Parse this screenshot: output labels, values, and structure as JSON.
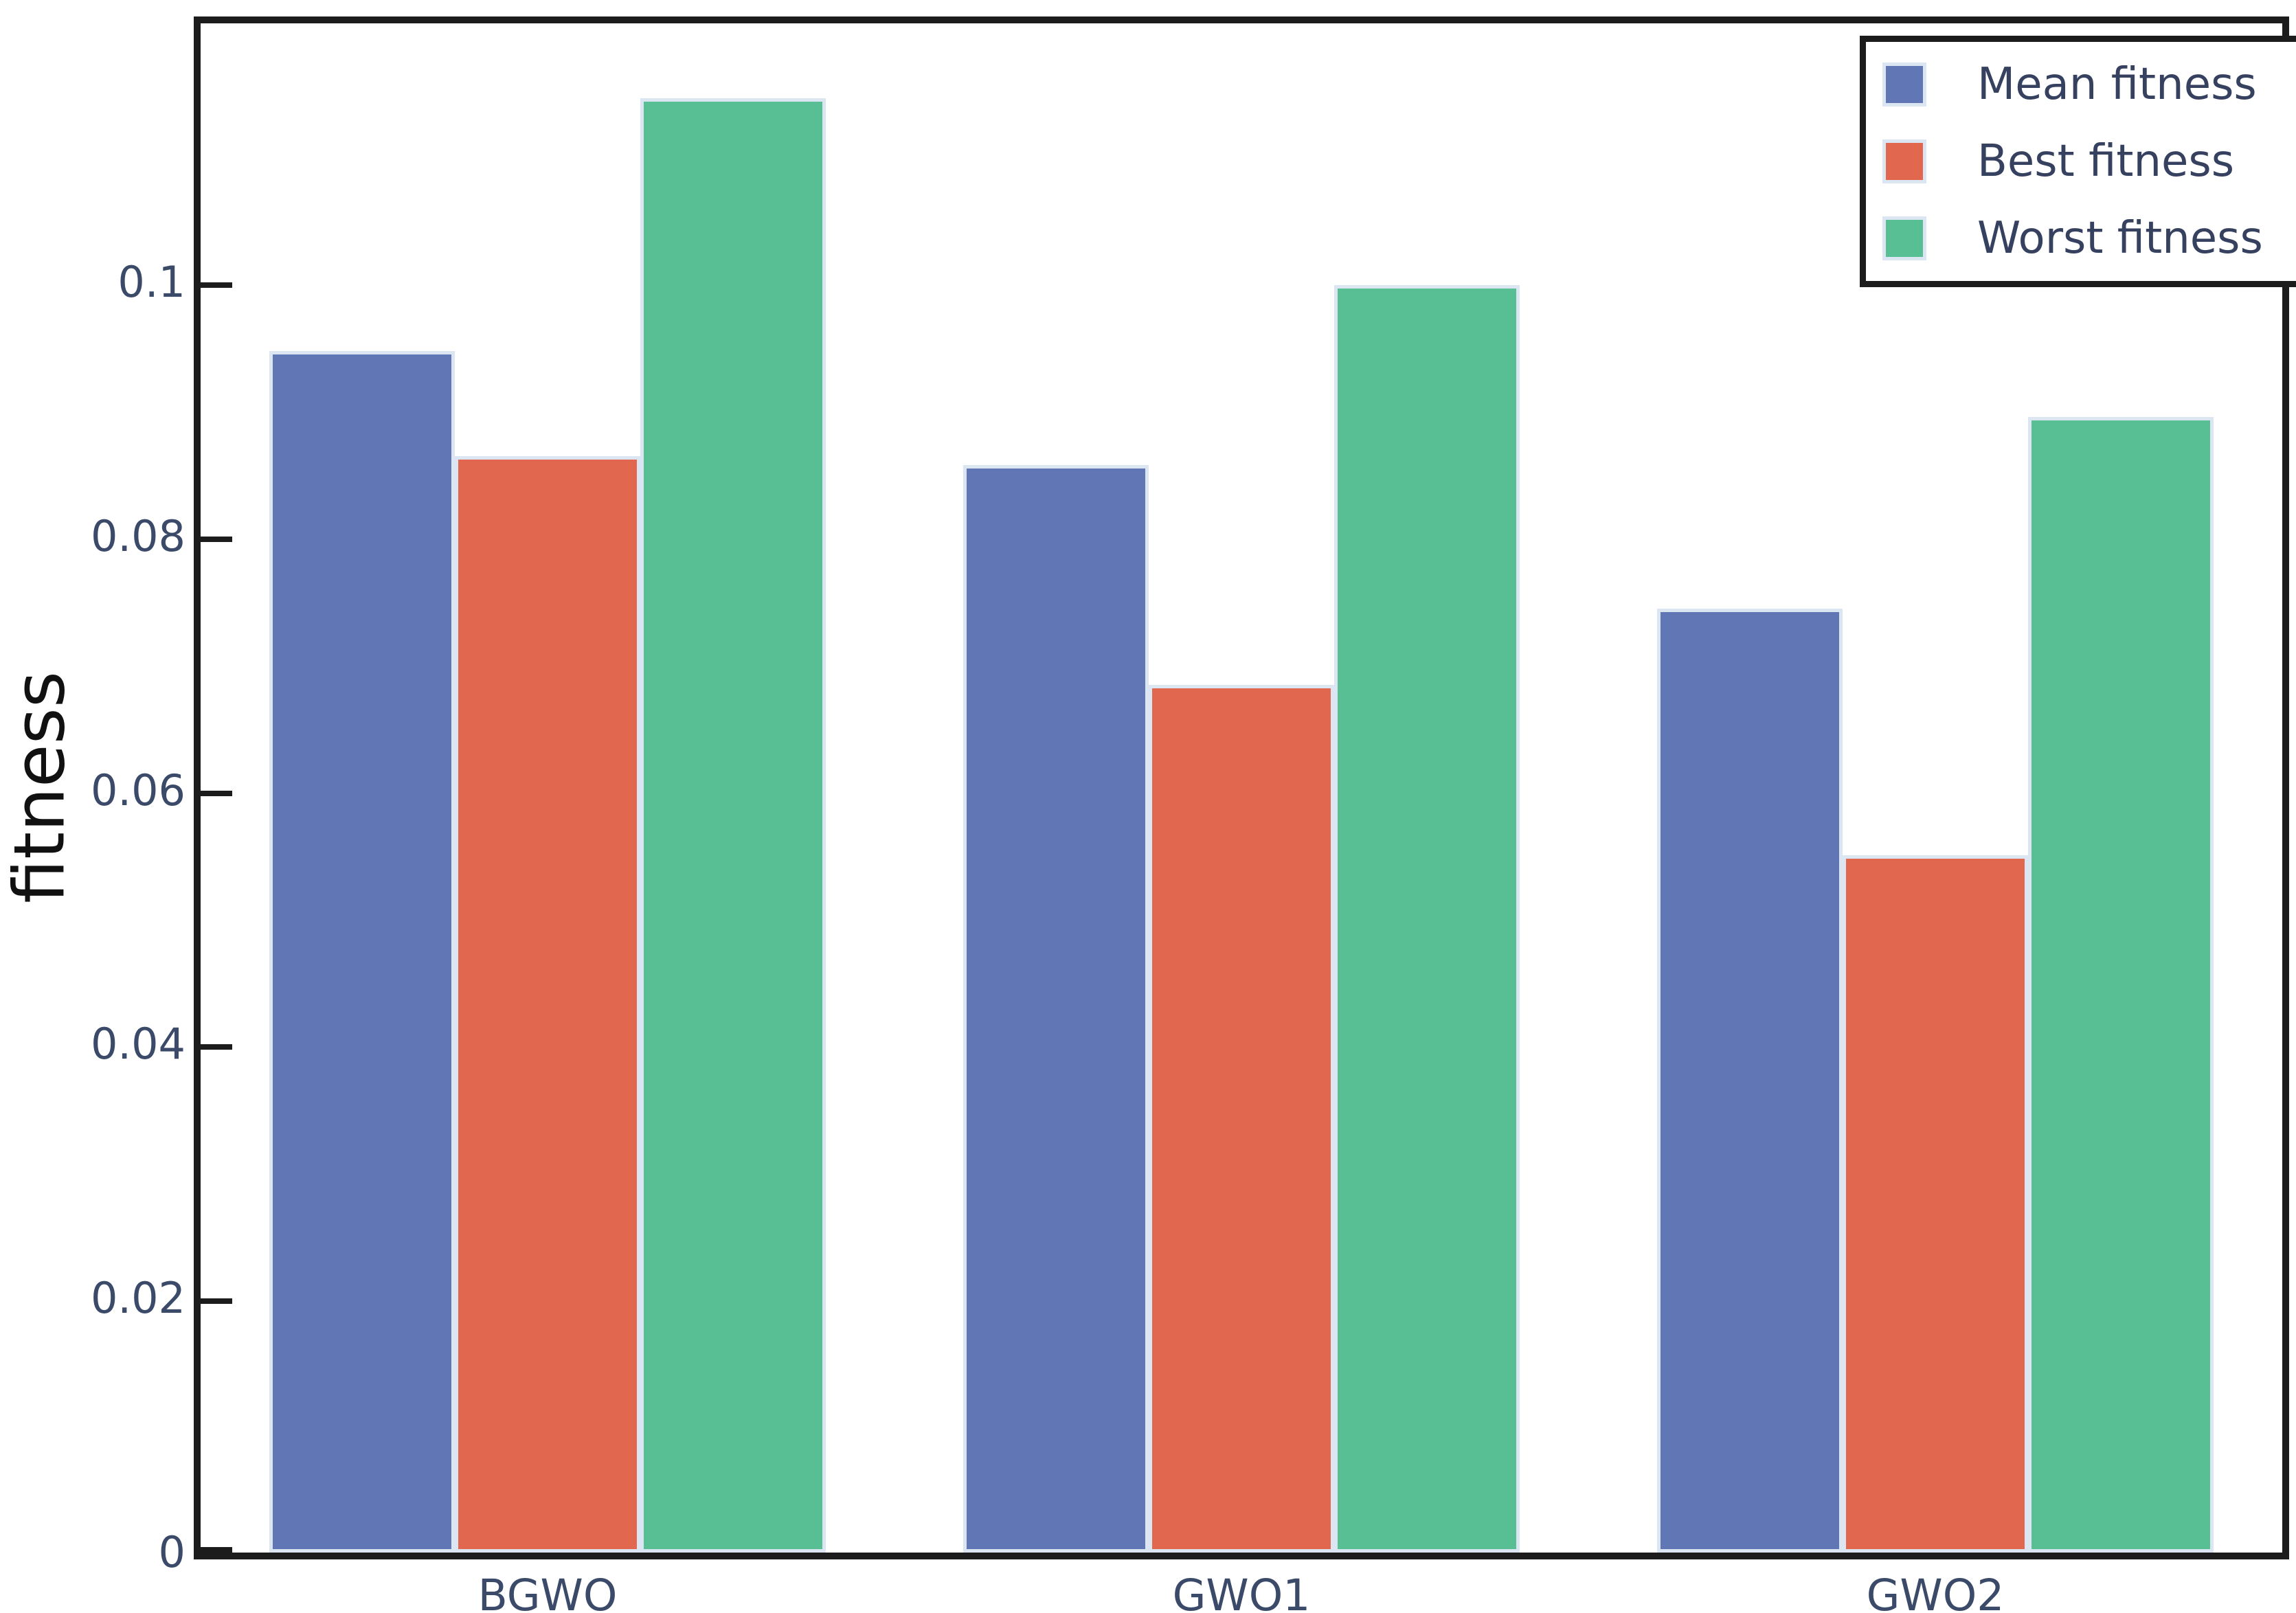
{
  "chart_data": {
    "type": "bar",
    "title": "",
    "xlabel": "",
    "ylabel": "fitness",
    "categories": [
      "BGWO",
      "GWO1",
      "GWO2"
    ],
    "series": [
      {
        "name": "Mean fitness",
        "color": "#6176b5",
        "values": [
          0.0946,
          0.0856,
          0.0743
        ]
      },
      {
        "name": "Best fitness",
        "color": "#e2674f",
        "values": [
          0.0863,
          0.0683,
          0.0549
        ]
      },
      {
        "name": "Worst fitness",
        "color": "#58bf95",
        "values": [
          0.1145,
          0.0998,
          0.0894
        ]
      }
    ],
    "yticks": [
      0,
      0.02,
      0.04,
      0.06,
      0.08,
      0.1
    ],
    "ytick_labels": [
      "0",
      "0.02",
      "0.04",
      "0.06",
      "0.08",
      "0.1"
    ],
    "ylim": [
      0,
      0.1204
    ],
    "grid": false,
    "legend_position": "upper right",
    "tick_direction": "in",
    "colors": {
      "bar_edge": "#dce5f2",
      "spine": "#1c1c1c",
      "tick_label": "#3a4a68",
      "legend_text": "#35415f",
      "axis_label": "#111111"
    }
  }
}
